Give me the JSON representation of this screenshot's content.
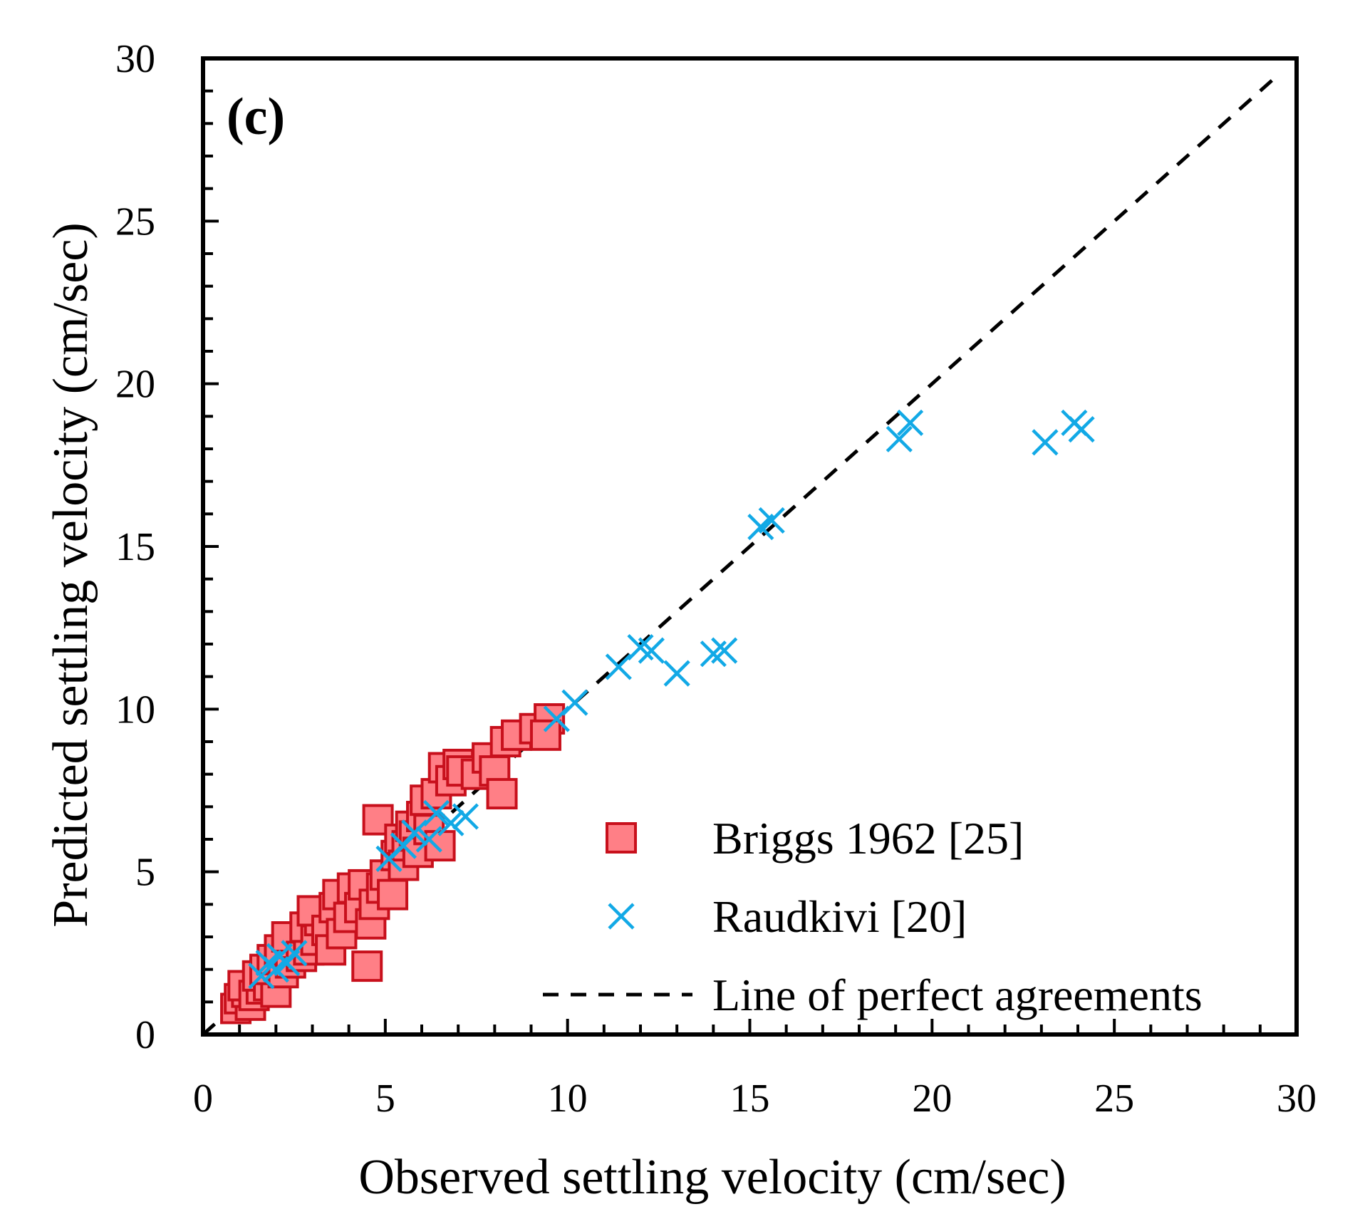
{
  "chart_data": {
    "type": "scatter",
    "panel_label": "(c)",
    "xlabel": "Observed settling velocity (cm/sec)",
    "ylabel": "Predicted settling velocity (cm/sec)",
    "xlim": [
      0,
      30
    ],
    "ylim": [
      0,
      30
    ],
    "xticks": [
      0,
      5,
      10,
      15,
      20,
      25,
      30
    ],
    "yticks": [
      0,
      5,
      10,
      15,
      20,
      25,
      30
    ],
    "minor_tick_step": 1,
    "grid": false,
    "legend_position": "bottom-right",
    "series": [
      {
        "name": "Briggs 1962 [25]",
        "marker": "square",
        "fill": "#ff7f86",
        "stroke": "#c8101c",
        "points": [
          [
            0.9,
            0.8
          ],
          [
            1.0,
            1.1
          ],
          [
            1.3,
            0.9
          ],
          [
            1.2,
            1.3
          ],
          [
            1.1,
            1.5
          ],
          [
            1.4,
            1.2
          ],
          [
            1.6,
            1.4
          ],
          [
            1.5,
            1.8
          ],
          [
            1.8,
            1.5
          ],
          [
            2.0,
            1.3
          ],
          [
            1.7,
            2.0
          ],
          [
            1.9,
            2.3
          ],
          [
            2.2,
            1.9
          ],
          [
            2.1,
            2.6
          ],
          [
            2.4,
            2.2
          ],
          [
            2.5,
            2.8
          ],
          [
            2.3,
            3.0
          ],
          [
            2.7,
            2.4
          ],
          [
            2.9,
            2.6
          ],
          [
            2.8,
            3.3
          ],
          [
            3.1,
            2.9
          ],
          [
            3.2,
            3.5
          ],
          [
            3.0,
            3.8
          ],
          [
            3.4,
            3.2
          ],
          [
            3.5,
            2.6
          ],
          [
            3.6,
            3.9
          ],
          [
            3.8,
            3.1
          ],
          [
            3.7,
            4.3
          ],
          [
            4.0,
            3.6
          ],
          [
            4.1,
            4.5
          ],
          [
            4.3,
            3.9
          ],
          [
            4.4,
            4.6
          ],
          [
            4.5,
            2.1
          ],
          [
            4.6,
            3.4
          ],
          [
            4.7,
            4.0
          ],
          [
            4.8,
            6.6
          ],
          [
            4.9,
            4.5
          ],
          [
            5.0,
            4.9
          ],
          [
            5.2,
            4.3
          ],
          [
            5.3,
            5.5
          ],
          [
            5.4,
            6.0
          ],
          [
            5.5,
            5.2
          ],
          [
            5.6,
            5.8
          ],
          [
            5.7,
            6.4
          ],
          [
            5.8,
            6.1
          ],
          [
            5.9,
            5.6
          ],
          [
            6.0,
            6.7
          ],
          [
            6.1,
            7.2
          ],
          [
            6.2,
            6.3
          ],
          [
            6.4,
            7.4
          ],
          [
            6.5,
            5.8
          ],
          [
            6.6,
            8.2
          ],
          [
            6.8,
            7.8
          ],
          [
            7.0,
            8.3
          ],
          [
            7.1,
            8.1
          ],
          [
            7.5,
            8.0
          ],
          [
            7.8,
            8.5
          ],
          [
            8.0,
            8.1
          ],
          [
            8.2,
            7.4
          ],
          [
            8.3,
            9.0
          ],
          [
            8.6,
            9.2
          ],
          [
            9.1,
            9.4
          ],
          [
            9.5,
            9.7
          ],
          [
            9.4,
            9.2
          ]
        ]
      },
      {
        "name": "Raudkivi [20]",
        "marker": "x",
        "stroke": "#12a9e6",
        "points": [
          [
            1.6,
            1.8
          ],
          [
            1.8,
            2.2
          ],
          [
            2.0,
            2.0
          ],
          [
            2.1,
            2.4
          ],
          [
            2.3,
            2.2
          ],
          [
            2.5,
            2.5
          ],
          [
            5.1,
            5.4
          ],
          [
            5.5,
            5.8
          ],
          [
            5.8,
            6.2
          ],
          [
            6.2,
            6.0
          ],
          [
            6.4,
            6.8
          ],
          [
            6.8,
            6.5
          ],
          [
            7.2,
            6.7
          ],
          [
            9.7,
            9.7
          ],
          [
            10.2,
            10.2
          ],
          [
            11.4,
            11.3
          ],
          [
            12.0,
            11.9
          ],
          [
            12.3,
            11.8
          ],
          [
            13.0,
            11.1
          ],
          [
            14.0,
            11.7
          ],
          [
            14.3,
            11.8
          ],
          [
            15.3,
            15.6
          ],
          [
            15.6,
            15.8
          ],
          [
            19.1,
            18.3
          ],
          [
            19.4,
            18.8
          ],
          [
            23.1,
            18.2
          ],
          [
            23.9,
            18.8
          ],
          [
            24.1,
            18.6
          ]
        ]
      },
      {
        "name": "Line of perfect agreements",
        "marker": "none",
        "line_style": "dashed",
        "stroke": "#000000",
        "points": [
          [
            0,
            0
          ],
          [
            29.5,
            29.5
          ]
        ]
      }
    ]
  }
}
